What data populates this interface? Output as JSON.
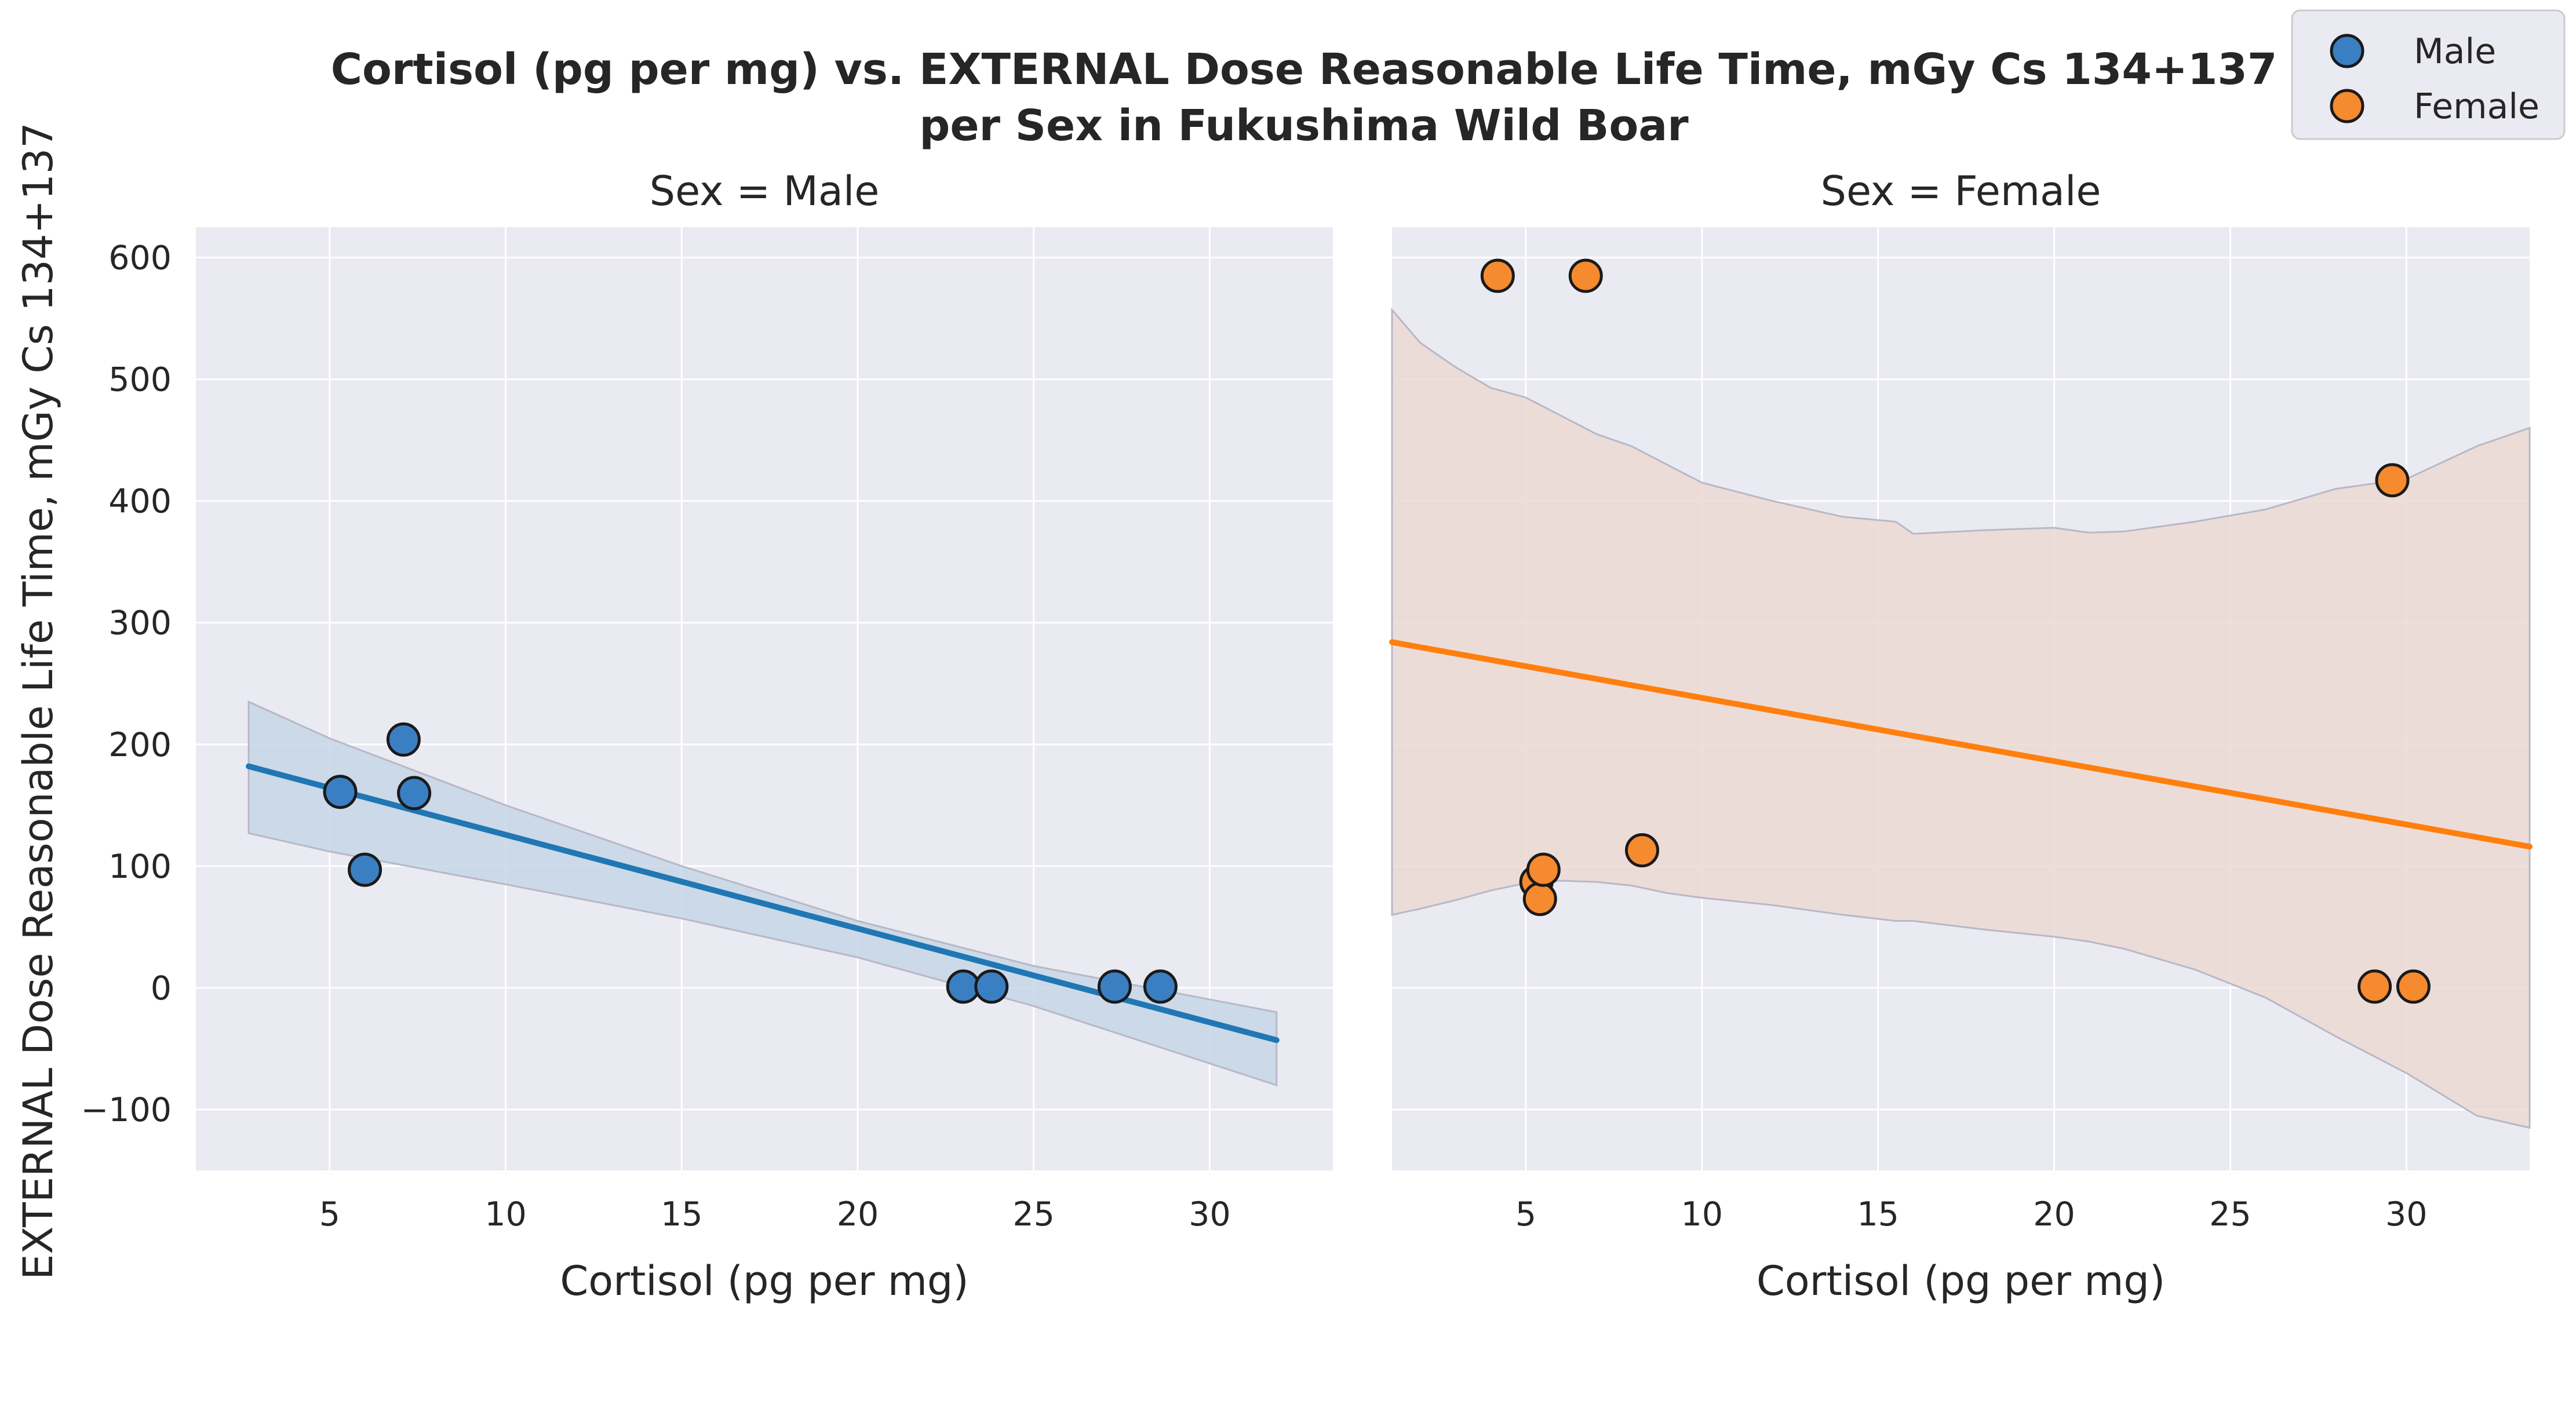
{
  "figure": {
    "title_line1": "Cortisol (pg per mg) vs. EXTERNAL Dose Reasonable Life Time, mGy Cs 134+137",
    "title_line2": "per Sex in Fukushima Wild Boar",
    "shared_ylabel": "EXTERNAL Dose Reasonable Life Time, mGy Cs 134+137"
  },
  "legend": {
    "placement": "top-right",
    "entries": [
      {
        "label": "Male",
        "color": "#3a7fc1"
      },
      {
        "label": "Female",
        "color": "#f58a2f"
      }
    ]
  },
  "colors": {
    "panel_bg": "#eaeaf2",
    "grid": "#ffffff",
    "male_point": "#3a7fc1",
    "male_line": "#1f77b4",
    "male_band": "#c6d6e8",
    "female_point": "#f58a2f",
    "female_line": "#ff7f0e",
    "female_band": "#ecd9d3",
    "band_edge": "#b8b8c6",
    "point_edge": "#1a1a1a"
  },
  "chart_data": [
    {
      "type": "scatter",
      "facet_title": "Sex = Male",
      "xlabel": "Cortisol (pg per mg)",
      "ylabel": "EXTERNAL Dose Reasonable Life Time, mGy Cs 134+137",
      "xlim": [
        1.2,
        33.5
      ],
      "ylim": [
        -150,
        625
      ],
      "xticks": [
        5,
        10,
        15,
        20,
        25,
        30
      ],
      "yticks": [
        -100,
        0,
        100,
        200,
        300,
        400,
        500,
        600
      ],
      "ytick_labels": [
        "−100",
        "0",
        "100",
        "200",
        "300",
        "400",
        "500",
        "600"
      ],
      "grid": true,
      "series_name": "Male",
      "points": [
        [
          5.3,
          161
        ],
        [
          6.0,
          97
        ],
        [
          7.1,
          204
        ],
        [
          7.4,
          160
        ],
        [
          23.0,
          1
        ],
        [
          23.8,
          1
        ],
        [
          27.3,
          1
        ],
        [
          28.6,
          1
        ]
      ],
      "regression": {
        "x": [
          2.7,
          31.9
        ],
        "y": [
          182,
          -43
        ]
      },
      "ci_band": {
        "x": [
          2.7,
          5,
          10,
          15,
          20,
          25,
          31.9
        ],
        "upper": [
          235,
          205,
          150,
          100,
          55,
          18,
          -20
        ],
        "lower": [
          127,
          112,
          85,
          57,
          25,
          -15,
          -80
        ]
      }
    },
    {
      "type": "scatter",
      "facet_title": "Sex = Female",
      "xlabel": "Cortisol (pg per mg)",
      "xlim": [
        1.2,
        33.5
      ],
      "ylim": [
        -150,
        625
      ],
      "xticks": [
        5,
        10,
        15,
        20,
        25,
        30
      ],
      "grid": true,
      "series_name": "Female",
      "points": [
        [
          4.2,
          585
        ],
        [
          6.7,
          585
        ],
        [
          5.3,
          87
        ],
        [
          5.4,
          73
        ],
        [
          5.5,
          97
        ],
        [
          8.3,
          113
        ],
        [
          29.1,
          1
        ],
        [
          29.6,
          417
        ],
        [
          30.2,
          1
        ]
      ],
      "regression": {
        "x": [
          1.2,
          33.5
        ],
        "y": [
          284,
          116
        ]
      },
      "ci_band": {
        "x": [
          1.2,
          2,
          3,
          4,
          5,
          6,
          7,
          8,
          9,
          10,
          12,
          14,
          15.5,
          16,
          18,
          20,
          21,
          22,
          24,
          26,
          28,
          30,
          32,
          33.5
        ],
        "upper": [
          557,
          530,
          510,
          493,
          485,
          470,
          455,
          445,
          430,
          415,
          400,
          387,
          383,
          373,
          376,
          378,
          374,
          375,
          383,
          393,
          410,
          418,
          445,
          460
        ],
        "lower": [
          60,
          65,
          72,
          80,
          86,
          88,
          87,
          84,
          78,
          74,
          68,
          60,
          55,
          55,
          48,
          42,
          38,
          32,
          15,
          -8,
          -40,
          -70,
          -105,
          -115
        ]
      }
    }
  ]
}
